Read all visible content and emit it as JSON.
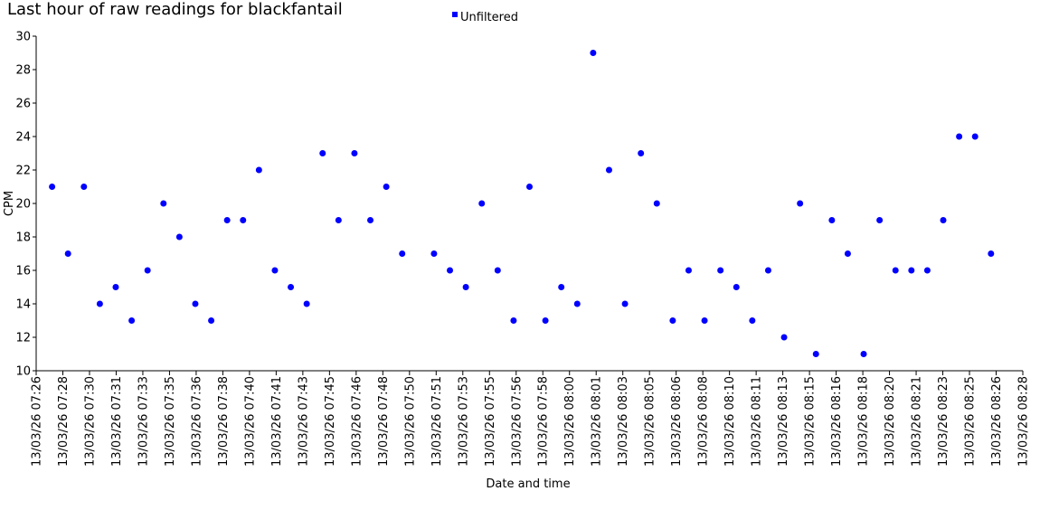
{
  "chart_data": {
    "type": "scatter",
    "title": "Last hour of raw readings for blackfantail",
    "xlabel": "Date and time",
    "ylabel": "CPM",
    "ylim": [
      10,
      30
    ],
    "yticks": [
      10,
      12,
      14,
      16,
      18,
      20,
      22,
      24,
      26,
      28,
      30
    ],
    "xlim": [
      "13/03/26 07:26",
      "13/03/26 08:28"
    ],
    "xticks": [
      "13/03/26 07:26",
      "13/03/26 07:28",
      "13/03/26 07:30",
      "13/03/26 07:31",
      "13/03/26 07:33",
      "13/03/26 07:35",
      "13/03/26 07:36",
      "13/03/26 07:38",
      "13/03/26 07:40",
      "13/03/26 07:41",
      "13/03/26 07:43",
      "13/03/26 07:45",
      "13/03/26 07:46",
      "13/03/26 07:48",
      "13/03/26 07:50",
      "13/03/26 07:51",
      "13/03/26 07:53",
      "13/03/26 07:55",
      "13/03/26 07:56",
      "13/03/26 07:58",
      "13/03/26 08:00",
      "13/03/26 08:01",
      "13/03/26 08:03",
      "13/03/26 08:05",
      "13/03/26 08:06",
      "13/03/26 08:08",
      "13/03/26 08:10",
      "13/03/26 08:11",
      "13/03/26 08:13",
      "13/03/26 08:15",
      "13/03/26 08:16",
      "13/03/26 08:18",
      "13/03/26 08:20",
      "13/03/26 08:21",
      "13/03/26 08:23",
      "13/03/26 08:25",
      "13/03/26 08:26",
      "13/03/26 08:28"
    ],
    "legend_position": "top-center",
    "grid": false,
    "series": [
      {
        "name": "Unfiltered",
        "color": "#0000ff",
        "points": [
          {
            "x": "13/03/26 07:27",
            "y": 21
          },
          {
            "x": "13/03/26 07:28",
            "y": 17
          },
          {
            "x": "13/03/26 07:29",
            "y": 21
          },
          {
            "x": "13/03/26 07:30",
            "y": 14
          },
          {
            "x": "13/03/26 07:31",
            "y": 15
          },
          {
            "x": "13/03/26 07:32",
            "y": 13
          },
          {
            "x": "13/03/26 07:33",
            "y": 16
          },
          {
            "x": "13/03/26 07:34",
            "y": 20
          },
          {
            "x": "13/03/26 07:35",
            "y": 18
          },
          {
            "x": "13/03/26 07:36",
            "y": 14
          },
          {
            "x": "13/03/26 07:37",
            "y": 13
          },
          {
            "x": "13/03/26 07:38",
            "y": 19
          },
          {
            "x": "13/03/26 07:39",
            "y": 19
          },
          {
            "x": "13/03/26 07:40",
            "y": 22
          },
          {
            "x": "13/03/26 07:41",
            "y": 16
          },
          {
            "x": "13/03/26 07:42",
            "y": 15
          },
          {
            "x": "13/03/26 07:43",
            "y": 14
          },
          {
            "x": "13/03/26 07:44",
            "y": 23
          },
          {
            "x": "13/03/26 07:45",
            "y": 19
          },
          {
            "x": "13/03/26 07:46",
            "y": 23
          },
          {
            "x": "13/03/26 07:47",
            "y": 19
          },
          {
            "x": "13/03/26 07:48",
            "y": 21
          },
          {
            "x": "13/03/26 07:49",
            "y": 17
          },
          {
            "x": "13/03/26 07:51",
            "y": 17
          },
          {
            "x": "13/03/26 07:52",
            "y": 16
          },
          {
            "x": "13/03/26 07:53",
            "y": 15
          },
          {
            "x": "13/03/26 07:54",
            "y": 20
          },
          {
            "x": "13/03/26 07:55",
            "y": 16
          },
          {
            "x": "13/03/26 07:56",
            "y": 13
          },
          {
            "x": "13/03/26 07:57",
            "y": 21
          },
          {
            "x": "13/03/26 07:58",
            "y": 13
          },
          {
            "x": "13/03/26 07:59",
            "y": 15
          },
          {
            "x": "13/03/26 08:00",
            "y": 14
          },
          {
            "x": "13/03/26 08:01",
            "y": 29
          },
          {
            "x": "13/03/26 08:02",
            "y": 22
          },
          {
            "x": "13/03/26 08:03",
            "y": 14
          },
          {
            "x": "13/03/26 08:04",
            "y": 23
          },
          {
            "x": "13/03/26 08:05",
            "y": 20
          },
          {
            "x": "13/03/26 08:06",
            "y": 13
          },
          {
            "x": "13/03/26 08:07",
            "y": 16
          },
          {
            "x": "13/03/26 08:08",
            "y": 13
          },
          {
            "x": "13/03/26 08:09",
            "y": 16
          },
          {
            "x": "13/03/26 08:10",
            "y": 15
          },
          {
            "x": "13/03/26 08:11",
            "y": 13
          },
          {
            "x": "13/03/26 08:12",
            "y": 16
          },
          {
            "x": "13/03/26 08:13",
            "y": 12
          },
          {
            "x": "13/03/26 08:14",
            "y": 20
          },
          {
            "x": "13/03/26 08:15",
            "y": 11
          },
          {
            "x": "13/03/26 08:16",
            "y": 19
          },
          {
            "x": "13/03/26 08:17",
            "y": 17
          },
          {
            "x": "13/03/26 08:18",
            "y": 11
          },
          {
            "x": "13/03/26 08:19",
            "y": 19
          },
          {
            "x": "13/03/26 08:20",
            "y": 16
          },
          {
            "x": "13/03/26 08:21",
            "y": 16
          },
          {
            "x": "13/03/26 08:22",
            "y": 16
          },
          {
            "x": "13/03/26 08:23",
            "y": 19
          },
          {
            "x": "13/03/26 08:24",
            "y": 24
          },
          {
            "x": "13/03/26 08:25",
            "y": 24
          },
          {
            "x": "13/03/26 08:26",
            "y": 17
          }
        ]
      }
    ]
  }
}
